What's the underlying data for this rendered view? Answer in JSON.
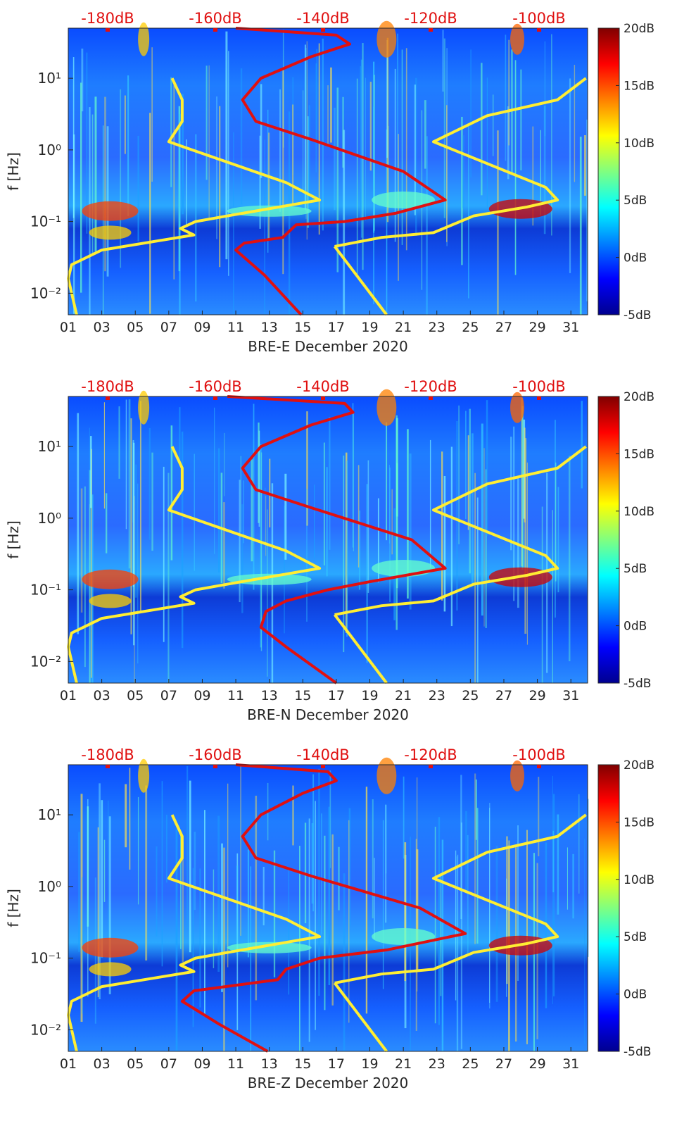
{
  "colormap": {
    "stops": [
      "#00008f",
      "#0000ff",
      "#0080ff",
      "#00ffff",
      "#80ff80",
      "#ffff00",
      "#ff8000",
      "#ff0000",
      "#800000"
    ],
    "ticks": [
      "20dB",
      "15dB",
      "10dB",
      "5dB",
      "0dB",
      "-5dB"
    ],
    "range": [
      -5,
      20
    ]
  },
  "colors": {
    "model_curve": "#ffee33",
    "noise_curve": "#e01010",
    "top_axis_text": "#e01010",
    "axis_text": "#262626"
  },
  "chart_data": [
    {
      "type": "heatmap",
      "title": "",
      "xlabel": "BRE-E December 2020",
      "ylabel": "f [Hz]",
      "x_ticks": [
        "01",
        "03",
        "05",
        "07",
        "09",
        "11",
        "13",
        "15",
        "17",
        "19",
        "21",
        "23",
        "25",
        "27",
        "29",
        "31"
      ],
      "xlim": [
        1,
        32
      ],
      "y_ticks": [
        "10⁻²",
        "10⁻¹",
        "10⁰",
        "10¹"
      ],
      "ylim": [
        0.005,
        50
      ],
      "y_scale": "log",
      "top_ticks": [
        "-180dB",
        "-160dB",
        "-140dB",
        "-120dB",
        "-100dB"
      ],
      "colorbar_label_range": [
        -5,
        20
      ],
      "series": [
        {
          "values": [
            [
              1.5,
              0.005
            ],
            [
              1.0,
              0.016
            ],
            [
              1.2,
              0.025
            ],
            [
              3.0,
              0.04
            ],
            [
              8.5,
              0.065
            ],
            [
              7.7,
              0.08
            ],
            [
              8.6,
              0.1
            ],
            [
              10.5,
              0.12
            ],
            [
              16.0,
              0.2
            ],
            [
              14.0,
              0.35
            ],
            [
              7.0,
              1.3
            ],
            [
              7.8,
              2.5
            ],
            [
              7.8,
              5.0
            ],
            [
              7.2,
              10.0
            ],
            [
              16.9,
              0.045
            ],
            [
              19.7,
              0.06
            ],
            [
              22.8,
              0.07
            ],
            [
              25.2,
              0.12
            ],
            [
              28.4,
              0.16
            ],
            [
              30.2,
              0.2
            ],
            [
              29.5,
              0.3
            ],
            [
              22.8,
              1.3
            ],
            [
              26.0,
              3.0
            ],
            [
              30.2,
              5.0
            ],
            [
              31.9,
              10.0
            ],
            [
              20.0,
              0.005
            ]
          ]
        },
        {
          "values": [
            [
              14.9,
              0.005
            ],
            [
              12.7,
              0.018
            ],
            [
              11.0,
              0.04
            ],
            [
              11.5,
              0.05
            ],
            [
              13.8,
              0.06
            ],
            [
              14.6,
              0.09
            ],
            [
              17.5,
              0.1
            ],
            [
              20.5,
              0.13
            ],
            [
              23.5,
              0.2
            ],
            [
              21.0,
              0.5
            ],
            [
              15.5,
              1.4
            ],
            [
              12.2,
              2.5
            ],
            [
              11.4,
              5.0
            ],
            [
              12.5,
              10.0
            ],
            [
              15.5,
              20.0
            ],
            [
              17.8,
              30.0
            ],
            [
              17.0,
              40.0
            ],
            [
              11.0,
              50.0
            ]
          ]
        }
      ]
    },
    {
      "type": "heatmap",
      "title": "",
      "xlabel": "BRE-N December 2020",
      "ylabel": "f [Hz]",
      "x_ticks": [
        "01",
        "03",
        "05",
        "07",
        "09",
        "11",
        "13",
        "15",
        "17",
        "19",
        "21",
        "23",
        "25",
        "27",
        "29",
        "31"
      ],
      "xlim": [
        1,
        32
      ],
      "y_ticks": [
        "10⁻²",
        "10⁻¹",
        "10⁰",
        "10¹"
      ],
      "ylim": [
        0.005,
        50
      ],
      "y_scale": "log",
      "top_ticks": [
        "-180dB",
        "-160dB",
        "-140dB",
        "-120dB",
        "-100dB"
      ],
      "colorbar_label_range": [
        -5,
        20
      ],
      "series": [
        {
          "values": [
            [
              1.5,
              0.005
            ],
            [
              1.0,
              0.016
            ],
            [
              1.2,
              0.025
            ],
            [
              3.0,
              0.04
            ],
            [
              8.5,
              0.065
            ],
            [
              7.7,
              0.08
            ],
            [
              8.6,
              0.1
            ],
            [
              10.5,
              0.12
            ],
            [
              16.0,
              0.2
            ],
            [
              14.0,
              0.35
            ],
            [
              7.0,
              1.3
            ],
            [
              7.8,
              2.5
            ],
            [
              7.8,
              5.0
            ],
            [
              7.2,
              10.0
            ],
            [
              16.9,
              0.045
            ],
            [
              19.7,
              0.06
            ],
            [
              22.8,
              0.07
            ],
            [
              25.2,
              0.12
            ],
            [
              28.4,
              0.16
            ],
            [
              30.2,
              0.2
            ],
            [
              29.5,
              0.3
            ],
            [
              22.8,
              1.3
            ],
            [
              26.0,
              3.0
            ],
            [
              30.2,
              5.0
            ],
            [
              31.9,
              10.0
            ],
            [
              20.0,
              0.005
            ]
          ]
        },
        {
          "values": [
            [
              17.0,
              0.005
            ],
            [
              14.0,
              0.016
            ],
            [
              12.5,
              0.03
            ],
            [
              12.8,
              0.05
            ],
            [
              14.0,
              0.07
            ],
            [
              16.5,
              0.1
            ],
            [
              19.0,
              0.13
            ],
            [
              23.5,
              0.2
            ],
            [
              21.5,
              0.5
            ],
            [
              15.5,
              1.4
            ],
            [
              12.2,
              2.5
            ],
            [
              11.4,
              5.0
            ],
            [
              12.5,
              10.0
            ],
            [
              15.5,
              20.0
            ],
            [
              18.0,
              30.0
            ],
            [
              17.5,
              40.0
            ],
            [
              10.5,
              50.0
            ]
          ]
        }
      ]
    },
    {
      "type": "heatmap",
      "title": "",
      "xlabel": "BRE-Z December 2020",
      "ylabel": "f [Hz]",
      "x_ticks": [
        "01",
        "03",
        "05",
        "07",
        "09",
        "11",
        "13",
        "15",
        "17",
        "19",
        "21",
        "23",
        "25",
        "27",
        "29",
        "31"
      ],
      "xlim": [
        1,
        32
      ],
      "y_ticks": [
        "10⁻²",
        "10⁻¹",
        "10⁰",
        "10¹"
      ],
      "ylim": [
        0.005,
        50
      ],
      "y_scale": "log",
      "top_ticks": [
        "-180dB",
        "-160dB",
        "-140dB",
        "-120dB",
        "-100dB"
      ],
      "colorbar_label_range": [
        -5,
        20
      ],
      "series": [
        {
          "values": [
            [
              1.5,
              0.005
            ],
            [
              1.0,
              0.016
            ],
            [
              1.2,
              0.025
            ],
            [
              3.0,
              0.04
            ],
            [
              8.5,
              0.065
            ],
            [
              7.7,
              0.08
            ],
            [
              8.6,
              0.1
            ],
            [
              10.5,
              0.12
            ],
            [
              16.0,
              0.2
            ],
            [
              14.0,
              0.35
            ],
            [
              7.0,
              1.3
            ],
            [
              7.8,
              2.5
            ],
            [
              7.8,
              5.0
            ],
            [
              7.2,
              10.0
            ],
            [
              16.9,
              0.045
            ],
            [
              19.7,
              0.06
            ],
            [
              22.8,
              0.07
            ],
            [
              25.2,
              0.12
            ],
            [
              28.4,
              0.16
            ],
            [
              30.2,
              0.2
            ],
            [
              29.5,
              0.3
            ],
            [
              22.8,
              1.3
            ],
            [
              26.0,
              3.0
            ],
            [
              30.2,
              5.0
            ],
            [
              31.9,
              10.0
            ],
            [
              20.0,
              0.005
            ]
          ]
        },
        {
          "values": [
            [
              12.9,
              0.005
            ],
            [
              10.0,
              0.012
            ],
            [
              7.8,
              0.025
            ],
            [
              8.5,
              0.035
            ],
            [
              13.5,
              0.05
            ],
            [
              14.0,
              0.07
            ],
            [
              16.0,
              0.1
            ],
            [
              20.0,
              0.13
            ],
            [
              24.7,
              0.22
            ],
            [
              22.0,
              0.5
            ],
            [
              15.5,
              1.4
            ],
            [
              12.2,
              2.5
            ],
            [
              11.4,
              5.0
            ],
            [
              12.5,
              10.0
            ],
            [
              15.0,
              20.0
            ],
            [
              17.0,
              30.0
            ],
            [
              16.5,
              40.0
            ],
            [
              11.0,
              50.0
            ]
          ]
        }
      ]
    }
  ]
}
